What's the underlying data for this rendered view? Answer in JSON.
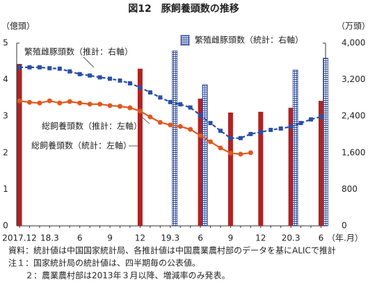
{
  "chart_data": {
    "type": "combo",
    "title": "図12　豚飼養頭数の推移",
    "y_label": "（億頭）",
    "y2_label": "（万頭）",
    "x_label": "（年.月）",
    "categories": [
      "2017.12",
      null,
      null,
      "18.3",
      null,
      null,
      "6",
      null,
      null,
      "9",
      null,
      null,
      "12",
      null,
      null,
      "19.3",
      null,
      null,
      "6",
      null,
      null,
      "9",
      null,
      null,
      "12",
      null,
      null,
      "20.3",
      null,
      null,
      "6"
    ],
    "ylim": [
      0,
      5
    ],
    "yticks": [
      0,
      1,
      2,
      3,
      4,
      5
    ],
    "y2lim": [
      0,
      4000
    ],
    "y2ticks": [
      0,
      800,
      {
        "value": 1600,
        "label": "1,600"
      },
      {
        "value": 2400,
        "label": "2,400"
      },
      {
        "value": 3200,
        "label": "3,200"
      },
      {
        "value": 4000,
        "label": "4,000"
      }
    ],
    "grid": false,
    "series": [
      {
        "name": "総飼養頭数（統計：左軸）",
        "type": "bar",
        "color": "#b22222",
        "values": [
          4.43,
          null,
          null,
          null,
          null,
          null,
          null,
          null,
          null,
          null,
          null,
          null,
          4.3,
          null,
          null,
          null,
          null,
          null,
          3.48,
          null,
          null,
          3.1,
          null,
          null,
          3.12,
          null,
          null,
          3.23,
          null,
          null,
          3.42
        ]
      },
      {
        "name": "繁殖雌豚頭数（統計：右軸）",
        "type": "bar",
        "axis": "y2",
        "color": "#2e4d9c",
        "hatch": true,
        "values": [
          null,
          null,
          null,
          null,
          null,
          null,
          null,
          null,
          null,
          null,
          null,
          null,
          null,
          null,
          null,
          3830,
          null,
          null,
          3090,
          null,
          null,
          null,
          null,
          null,
          null,
          null,
          null,
          3410,
          null,
          null,
          3670
        ]
      },
      {
        "name": "総飼養頭数（推計：左軸）",
        "type": "line",
        "color": "#e0581f",
        "marker": "circle",
        "values": [
          3.42,
          3.38,
          3.36,
          3.42,
          3.36,
          3.4,
          3.36,
          3.33,
          3.33,
          3.29,
          3.27,
          3.23,
          3.14,
          2.98,
          2.83,
          2.76,
          2.72,
          2.64,
          2.47,
          2.3,
          2.13,
          1.99,
          1.96,
          2.0,
          null,
          null,
          null,
          null,
          null,
          null,
          null
        ]
      },
      {
        "name": "繁殖雌豚頭数（推計：右軸）",
        "type": "line",
        "axis": "y2",
        "color": "#2a4fa8",
        "marker": "square",
        "dashed": true,
        "values": [
          3470,
          3470,
          3470,
          3450,
          3440,
          3380,
          3320,
          3290,
          3250,
          3220,
          3180,
          3120,
          3030,
          2920,
          2810,
          2710,
          2660,
          2590,
          2420,
          2250,
          2080,
          1920,
          1920,
          2010,
          2050,
          2100,
          2130,
          2170,
          2250,
          2330,
          2390
        ]
      }
    ],
    "notes": [
      "資料：統計値は中国国家統計局、各推計値は中国農業農村部のデータを基にALICで推計",
      "注１：国家統計局の統計値は、四半期毎の公表値。",
      "２：農業農村部は2013年３月以降、増減率のみ発表。"
    ]
  }
}
